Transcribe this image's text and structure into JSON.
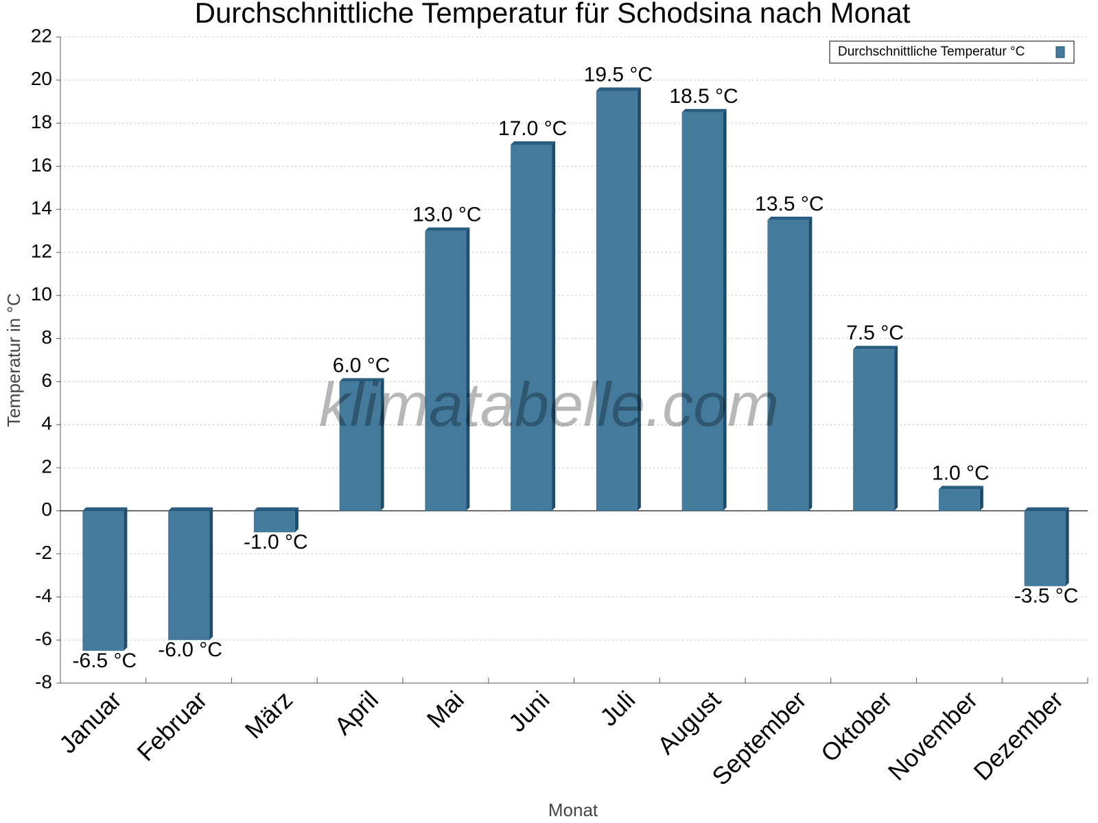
{
  "chart_data": {
    "type": "bar",
    "title": "Durchschnittliche Temperatur für Schodsina nach Monat",
    "x_label": "Monat",
    "y_label": "Temperatur in °C",
    "watermark": "klimatabelle.com",
    "categories": [
      "Januar",
      "Februar",
      "März",
      "April",
      "Mai",
      "Juni",
      "Juli",
      "August",
      "September",
      "Oktober",
      "November",
      "Dezember"
    ],
    "series": [
      {
        "name": "Durchschnittliche Temperatur °C",
        "color": "#447a9c",
        "values": [
          -6.5,
          -6.0,
          -1.0,
          6.0,
          13.0,
          17.0,
          19.5,
          18.5,
          13.5,
          7.5,
          1.0,
          -3.5
        ],
        "value_labels": [
          "-6.5 °C",
          "-6.0 °C",
          "-1.0 °C",
          "6.0 °C",
          "13.0 °C",
          "17.0 °C",
          "19.5 °C",
          "18.5 °C",
          "13.5 °C",
          "7.5 °C",
          "1.0 °C",
          "-3.5 °C"
        ]
      }
    ],
    "ylim": [
      -8,
      22
    ],
    "yticks": [
      -8,
      -6,
      -4,
      -2,
      0,
      2,
      4,
      6,
      8,
      10,
      12,
      14,
      16,
      18,
      20,
      22
    ],
    "grid": true,
    "legend": "top-right"
  }
}
